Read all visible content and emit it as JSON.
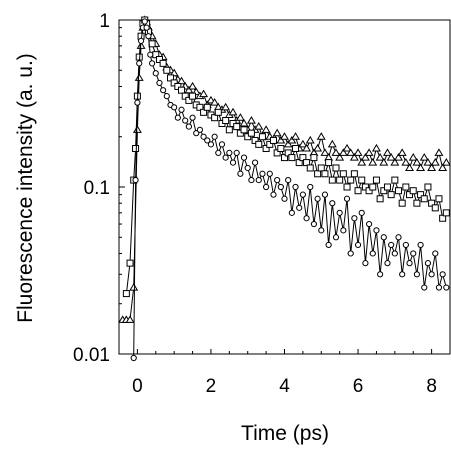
{
  "chart_data": {
    "type": "scatter",
    "title": "",
    "xlabel": "Time (ps)",
    "ylabel": "Fluorescence intensity (a. u.)",
    "xlim": [
      -0.5,
      8.5
    ],
    "ylim": [
      0.01,
      1
    ],
    "yscale": "log",
    "grid": false,
    "legend": "none",
    "x_ticks": [
      0,
      2,
      4,
      6,
      8
    ],
    "x_tick_labels": [
      "0",
      "2",
      "4",
      "6",
      "8"
    ],
    "y_ticks": [
      0.01,
      0.1,
      1
    ],
    "y_tick_labels": [
      "0.01",
      "0.1",
      "1"
    ],
    "series": [
      {
        "marker": "triangle",
        "color": "#000000",
        "x": [
          -0.4,
          -0.3,
          -0.2,
          -0.1,
          0,
          0.05,
          0.1,
          0.15,
          0.2,
          0.25,
          0.3,
          0.4,
          0.5,
          0.6,
          0.7,
          0.8,
          0.9,
          1,
          1.1,
          1.2,
          1.3,
          1.4,
          1.5,
          1.6,
          1.7,
          1.8,
          1.9,
          2,
          2.1,
          2.2,
          2.3,
          2.4,
          2.5,
          2.6,
          2.7,
          2.8,
          2.9,
          3,
          3.1,
          3.2,
          3.3,
          3.4,
          3.5,
          3.6,
          3.7,
          3.8,
          3.9,
          4,
          4.1,
          4.2,
          4.3,
          4.4,
          4.5,
          4.6,
          4.7,
          4.8,
          4.9,
          5,
          5.1,
          5.2,
          5.3,
          5.4,
          5.5,
          5.6,
          5.7,
          5.8,
          5.9,
          6,
          6.1,
          6.2,
          6.3,
          6.4,
          6.5,
          6.6,
          6.7,
          6.8,
          6.9,
          7,
          7.1,
          7.2,
          7.3,
          7.4,
          7.5,
          7.6,
          7.7,
          7.8,
          7.9,
          8,
          8.1,
          8.2,
          8.3,
          8.4
        ],
        "values": [
          0.016,
          0.016,
          0.016,
          0.025,
          0.22,
          0.45,
          0.7,
          0.9,
          1.0,
          0.97,
          0.9,
          0.8,
          0.72,
          0.62,
          0.6,
          0.52,
          0.5,
          0.48,
          0.44,
          0.43,
          0.4,
          0.38,
          0.4,
          0.37,
          0.35,
          0.36,
          0.31,
          0.33,
          0.32,
          0.3,
          0.29,
          0.3,
          0.27,
          0.28,
          0.25,
          0.26,
          0.24,
          0.22,
          0.25,
          0.22,
          0.23,
          0.2,
          0.22,
          0.2,
          0.19,
          0.21,
          0.19,
          0.2,
          0.18,
          0.19,
          0.2,
          0.17,
          0.18,
          0.17,
          0.19,
          0.16,
          0.17,
          0.2,
          0.16,
          0.15,
          0.18,
          0.16,
          0.15,
          0.16,
          0.17,
          0.16,
          0.15,
          0.16,
          0.14,
          0.15,
          0.16,
          0.14,
          0.17,
          0.15,
          0.14,
          0.16,
          0.15,
          0.14,
          0.15,
          0.16,
          0.14,
          0.13,
          0.15,
          0.14,
          0.13,
          0.15,
          0.14,
          0.13,
          0.14,
          0.16,
          0.13,
          0.14
        ]
      },
      {
        "marker": "square",
        "color": "#000000",
        "x": [
          -0.3,
          -0.2,
          -0.1,
          -0.05,
          0,
          0.05,
          0.1,
          0.15,
          0.2,
          0.25,
          0.3,
          0.4,
          0.5,
          0.6,
          0.7,
          0.8,
          0.9,
          1,
          1.1,
          1.2,
          1.3,
          1.4,
          1.5,
          1.6,
          1.7,
          1.8,
          1.9,
          2,
          2.1,
          2.2,
          2.3,
          2.4,
          2.5,
          2.6,
          2.7,
          2.8,
          2.9,
          3,
          3.1,
          3.2,
          3.3,
          3.4,
          3.5,
          3.6,
          3.7,
          3.8,
          3.9,
          4,
          4.1,
          4.2,
          4.3,
          4.4,
          4.5,
          4.6,
          4.7,
          4.8,
          4.9,
          5,
          5.1,
          5.2,
          5.3,
          5.4,
          5.5,
          5.6,
          5.7,
          5.8,
          5.9,
          6,
          6.1,
          6.2,
          6.3,
          6.4,
          6.5,
          6.6,
          6.7,
          6.8,
          6.9,
          7,
          7.1,
          7.2,
          7.3,
          7.4,
          7.5,
          7.6,
          7.7,
          7.8,
          7.9,
          8,
          8.1,
          8.2,
          8.3,
          8.4
        ],
        "values": [
          0.023,
          0.035,
          0.11,
          0.17,
          0.35,
          0.6,
          0.8,
          0.95,
          1.0,
          0.95,
          0.85,
          0.72,
          0.62,
          0.58,
          0.55,
          0.5,
          0.45,
          0.42,
          0.4,
          0.38,
          0.35,
          0.33,
          0.35,
          0.31,
          0.3,
          0.28,
          0.3,
          0.27,
          0.26,
          0.28,
          0.24,
          0.25,
          0.22,
          0.24,
          0.23,
          0.21,
          0.22,
          0.2,
          0.21,
          0.19,
          0.18,
          0.2,
          0.17,
          0.18,
          0.19,
          0.16,
          0.17,
          0.15,
          0.16,
          0.15,
          0.17,
          0.14,
          0.15,
          0.14,
          0.13,
          0.15,
          0.12,
          0.13,
          0.12,
          0.14,
          0.11,
          0.13,
          0.11,
          0.12,
          0.1,
          0.11,
          0.12,
          0.095,
          0.11,
          0.1,
          0.095,
          0.1,
          0.11,
          0.085,
          0.095,
          0.1,
          0.09,
          0.11,
          0.095,
          0.08,
          0.1,
          0.09,
          0.095,
          0.08,
          0.09,
          0.085,
          0.1,
          0.08,
          0.075,
          0.085,
          0.065,
          0.07
        ]
      },
      {
        "marker": "circle",
        "color": "#000000",
        "x": [
          -0.1,
          -0.05,
          0,
          0.05,
          0.1,
          0.15,
          0.2,
          0.25,
          0.3,
          0.35,
          0.4,
          0.5,
          0.6,
          0.7,
          0.8,
          0.9,
          1,
          1.1,
          1.2,
          1.3,
          1.4,
          1.5,
          1.6,
          1.7,
          1.8,
          1.9,
          2,
          2.1,
          2.2,
          2.3,
          2.4,
          2.5,
          2.6,
          2.7,
          2.8,
          2.9,
          3,
          3.1,
          3.2,
          3.3,
          3.4,
          3.5,
          3.6,
          3.7,
          3.8,
          3.9,
          4,
          4.1,
          4.2,
          4.3,
          4.4,
          4.5,
          4.6,
          4.7,
          4.8,
          4.9,
          5,
          5.1,
          5.2,
          5.3,
          5.4,
          5.5,
          5.6,
          5.7,
          5.8,
          5.9,
          6,
          6.1,
          6.2,
          6.3,
          6.4,
          6.5,
          6.6,
          6.7,
          6.8,
          6.9,
          7,
          7.1,
          7.2,
          7.3,
          7.4,
          7.5,
          7.6,
          7.7,
          7.8,
          7.9,
          8,
          8.1,
          8.2,
          8.3,
          8.4
        ],
        "values": [
          0.009,
          0.11,
          0.32,
          0.55,
          0.75,
          0.9,
          0.98,
          0.9,
          0.8,
          0.62,
          0.55,
          0.48,
          0.42,
          0.38,
          0.35,
          0.31,
          0.3,
          0.26,
          0.29,
          0.25,
          0.23,
          0.26,
          0.21,
          0.22,
          0.2,
          0.19,
          0.18,
          0.2,
          0.16,
          0.18,
          0.15,
          0.16,
          0.14,
          0.16,
          0.12,
          0.15,
          0.13,
          0.11,
          0.14,
          0.11,
          0.12,
          0.1,
          0.12,
          0.09,
          0.11,
          0.1,
          0.085,
          0.11,
          0.07,
          0.1,
          0.075,
          0.09,
          0.065,
          0.1,
          0.06,
          0.085,
          0.055,
          0.09,
          0.045,
          0.08,
          0.05,
          0.07,
          0.055,
          0.085,
          0.04,
          0.065,
          0.045,
          0.07,
          0.035,
          0.06,
          0.04,
          0.055,
          0.03,
          0.05,
          0.035,
          0.045,
          0.04,
          0.05,
          0.03,
          0.045,
          0.035,
          0.04,
          0.03,
          0.045,
          0.025,
          0.035,
          0.03,
          0.04,
          0.025,
          0.03,
          0.025
        ]
      }
    ]
  }
}
